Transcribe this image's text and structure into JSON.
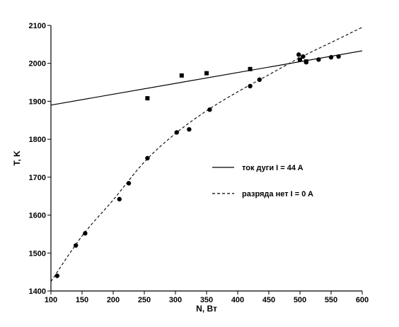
{
  "chart_data": {
    "type": "scatter",
    "title": "",
    "xlabel": "N, Вт",
    "ylabel": "T, K",
    "xlim": [
      100,
      600
    ],
    "ylim": [
      1400,
      2100
    ],
    "xticks": [
      100,
      150,
      200,
      250,
      300,
      350,
      400,
      450,
      500,
      550,
      600
    ],
    "yticks": [
      1400,
      1500,
      1600,
      1700,
      1800,
      1900,
      2000,
      2100
    ],
    "grid": false,
    "legend_position": "center-right",
    "series": [
      {
        "name": "ток дуги I = 44 A",
        "line_style": "solid",
        "fit_line": [
          [
            100,
            1890
          ],
          [
            600,
            2033
          ]
        ],
        "points": [
          [
            255,
            1908
          ],
          [
            310,
            1968
          ],
          [
            350,
            1974
          ],
          [
            420,
            1985
          ],
          [
            500,
            2010
          ],
          [
            510,
            2005
          ]
        ]
      },
      {
        "name": "разряда нет I = 0 A",
        "line_style": "dashed",
        "fit_curve": [
          [
            100,
            1425
          ],
          [
            150,
            1545
          ],
          [
            200,
            1640
          ],
          [
            250,
            1740
          ],
          [
            300,
            1815
          ],
          [
            350,
            1875
          ],
          [
            400,
            1925
          ],
          [
            450,
            1970
          ],
          [
            500,
            2015
          ],
          [
            550,
            2055
          ],
          [
            600,
            2095
          ]
        ],
        "points": [
          [
            110,
            1440
          ],
          [
            140,
            1520
          ],
          [
            155,
            1552
          ],
          [
            210,
            1642
          ],
          [
            225,
            1684
          ],
          [
            255,
            1750
          ],
          [
            302,
            1818
          ],
          [
            322,
            1826
          ],
          [
            355,
            1878
          ],
          [
            420,
            1940
          ],
          [
            435,
            1957
          ],
          [
            498,
            2023
          ],
          [
            505,
            2018
          ],
          [
            510,
            2003
          ],
          [
            530,
            2010
          ],
          [
            550,
            2016
          ],
          [
            562,
            2018
          ]
        ]
      }
    ]
  }
}
